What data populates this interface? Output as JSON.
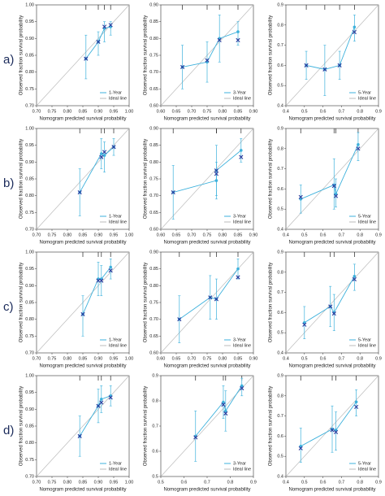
{
  "row_labels": [
    "a)",
    "b)",
    "c)",
    "d)"
  ],
  "chart_data": [
    {
      "type": "calibration",
      "xlabel": "Nomogram predicted survival probability",
      "ylabel": "Observed fraction survival probability",
      "series": [
        {
          "name": "1-Year",
          "color": "#3db1dc",
          "x": [
            0.86,
            0.9,
            0.92,
            0.94
          ],
          "values": [
            0.84,
            0.89,
            0.93,
            0.935
          ],
          "lower": [
            0.78,
            0.85,
            0.89,
            0.91
          ],
          "upper": [
            0.91,
            0.92,
            0.95,
            0.95
          ],
          "corrected": [
            0.84,
            0.89,
            0.935,
            0.94
          ],
          "corrected_color": "#2b3a9c"
        }
      ],
      "ideal": {
        "name": "Ideal line",
        "color": "#bbbbbb"
      },
      "xlim": [
        0.7,
        1.0
      ],
      "ylim": [
        0.7,
        1.0
      ],
      "xticks": [
        {
          "value": 0.7,
          "label": "0.70"
        },
        0.75,
        {
          "value": 0.8,
          "label": "0.80"
        },
        0.85,
        {
          "value": 0.9,
          "label": "0.90"
        },
        0.95,
        {
          "value": 1.0,
          "label": "1.00"
        }
      ],
      "yticks": [
        {
          "value": 0.7,
          "label": "0.70"
        },
        0.75,
        {
          "value": 0.8,
          "label": "0.80"
        },
        0.85,
        {
          "value": 0.9,
          "label": "0.90"
        },
        0.95,
        {
          "value": 1.0,
          "label": "1.00"
        }
      ]
    },
    {
      "type": "calibration",
      "xlabel": "Nomogram predicted survival probability",
      "ylabel": "Observed fraction survival probability",
      "series": [
        {
          "name": "3-Year",
          "color": "#3db1dc",
          "x": [
            0.67,
            0.75,
            0.79,
            0.85
          ],
          "values": [
            0.715,
            0.73,
            0.8,
            0.82
          ],
          "lower": [
            0.65,
            0.67,
            0.73,
            0.78
          ],
          "upper": [
            0.78,
            0.79,
            0.87,
            0.85
          ],
          "corrected": [
            0.715,
            0.735,
            0.795,
            0.795
          ],
          "corrected_color": "#2b3a9c"
        }
      ],
      "ideal": {
        "name": "Ideal line",
        "color": "#bbbbbb"
      },
      "xlim": [
        0.6,
        0.9
      ],
      "ylim": [
        0.6,
        0.9
      ],
      "xticks": [
        {
          "value": 0.6,
          "label": "0.60"
        },
        0.65,
        {
          "value": 0.7,
          "label": "0.70"
        },
        0.75,
        {
          "value": 0.8,
          "label": "0.80"
        },
        0.85,
        {
          "value": 0.9,
          "label": "0.90"
        }
      ],
      "yticks": [
        {
          "value": 0.6,
          "label": "0.60"
        },
        0.65,
        {
          "value": 0.7,
          "label": "0.70"
        },
        0.75,
        {
          "value": 0.8,
          "label": "0.80"
        },
        0.85,
        {
          "value": 0.9,
          "label": "0.90"
        }
      ]
    },
    {
      "type": "calibration",
      "xlabel": "Nomogram predicted survival probability",
      "ylabel": "Observed fraction survival probability",
      "series": [
        {
          "name": "5-Year",
          "color": "#3db1dc",
          "x": [
            0.51,
            0.61,
            0.69,
            0.77
          ],
          "values": [
            0.6,
            0.58,
            0.6,
            0.79
          ],
          "lower": [
            0.53,
            0.45,
            0.53,
            0.72
          ],
          "upper": [
            0.67,
            0.7,
            0.67,
            0.85
          ],
          "corrected": [
            0.6,
            0.58,
            0.6,
            0.765
          ],
          "corrected_color": "#2b3a9c"
        }
      ],
      "ideal": {
        "name": "Ideal line",
        "color": "#bbbbbb"
      },
      "xlim": [
        0.4,
        0.9
      ],
      "ylim": [
        0.4,
        0.9
      ],
      "xticks": [
        0.4,
        0.5,
        0.6,
        0.7,
        0.8,
        0.9
      ],
      "yticks": [
        0.4,
        0.5,
        0.6,
        0.7,
        0.8,
        0.9
      ]
    },
    {
      "type": "calibration",
      "xlabel": "Nomogram predicted survival probability",
      "ylabel": "Observed fraction survival probability",
      "series": [
        {
          "name": "1-Year",
          "color": "#3db1dc",
          "x": [
            0.84,
            0.91,
            0.92,
            0.95
          ],
          "values": [
            0.81,
            0.925,
            0.92,
            0.945
          ],
          "lower": [
            0.74,
            0.88,
            0.87,
            0.92
          ],
          "upper": [
            0.88,
            0.97,
            0.96,
            0.97
          ],
          "corrected": [
            0.81,
            0.915,
            0.93,
            0.945
          ],
          "corrected_color": "#2b3a9c"
        }
      ],
      "ideal": {
        "name": "Ideal line",
        "color": "#bbbbbb"
      },
      "xlim": [
        0.7,
        1.0
      ],
      "ylim": [
        0.7,
        1.0
      ],
      "xticks": [
        {
          "value": 0.7,
          "label": "0.70"
        },
        0.75,
        {
          "value": 0.8,
          "label": "0.80"
        },
        0.85,
        {
          "value": 0.9,
          "label": "0.90"
        },
        0.95,
        {
          "value": 1.0,
          "label": "1.00"
        }
      ],
      "yticks": [
        {
          "value": 0.7,
          "label": "0.70"
        },
        0.75,
        {
          "value": 0.8,
          "label": "0.80"
        },
        0.85,
        {
          "value": 0.9,
          "label": "0.90"
        },
        0.95,
        {
          "value": 1.0,
          "label": "1.00"
        }
      ]
    },
    {
      "type": "calibration",
      "xlabel": "Nomogram predicted survival probability",
      "ylabel": "Observed fraction survival probability",
      "series": [
        {
          "name": "3-Year",
          "color": "#3db1dc",
          "x": [
            0.64,
            0.78,
            0.78,
            0.86
          ],
          "values": [
            0.71,
            0.745,
            0.775,
            0.835
          ],
          "lower": [
            0.63,
            0.69,
            0.7,
            0.8
          ],
          "upper": [
            0.79,
            0.8,
            0.85,
            0.87
          ],
          "corrected": [
            0.71,
            0.765,
            0.775,
            0.815
          ],
          "corrected_color": "#2b3a9c"
        }
      ],
      "ideal": {
        "name": "Ideal line",
        "color": "#bbbbbb"
      },
      "xlim": [
        0.6,
        0.9
      ],
      "ylim": [
        0.6,
        0.9
      ],
      "xticks": [
        {
          "value": 0.6,
          "label": "0.60"
        },
        0.65,
        {
          "value": 0.7,
          "label": "0.70"
        },
        0.75,
        {
          "value": 0.8,
          "label": "0.80"
        },
        0.85,
        {
          "value": 0.9,
          "label": "0.90"
        }
      ],
      "yticks": [
        {
          "value": 0.6,
          "label": "0.60"
        },
        0.65,
        {
          "value": 0.7,
          "label": "0.70"
        },
        0.75,
        {
          "value": 0.8,
          "label": "0.80"
        },
        0.85,
        {
          "value": 0.9,
          "label": "0.90"
        }
      ]
    },
    {
      "type": "calibration",
      "xlabel": "Nomogram predicted survival probability",
      "ylabel": "Observed fraction survival probability",
      "series": [
        {
          "name": "5-Year",
          "color": "#3db1dc",
          "x": [
            0.48,
            0.66,
            0.67,
            0.79
          ],
          "values": [
            0.55,
            0.62,
            0.575,
            0.82
          ],
          "lower": [
            0.48,
            0.5,
            0.51,
            0.74
          ],
          "upper": [
            0.62,
            0.75,
            0.65,
            0.88
          ],
          "corrected": [
            0.56,
            0.615,
            0.565,
            0.8
          ],
          "corrected_color": "#2b3a9c"
        }
      ],
      "ideal": {
        "name": "Ideal line",
        "color": "#bbbbbb"
      },
      "xlim": [
        0.4,
        0.9
      ],
      "ylim": [
        0.4,
        0.9
      ],
      "xticks": [
        0.4,
        0.5,
        0.6,
        0.7,
        0.8,
        0.9
      ],
      "yticks": [
        0.4,
        0.5,
        0.6,
        0.7,
        0.8,
        0.9
      ]
    },
    {
      "type": "calibration",
      "xlabel": "Nomogram predicted survival probability",
      "ylabel": "Observed fraction survival probability",
      "series": [
        {
          "name": "1-Year",
          "color": "#3db1dc",
          "x": [
            0.85,
            0.9,
            0.91,
            0.94
          ],
          "values": [
            0.815,
            0.92,
            0.92,
            0.955
          ],
          "lower": [
            0.75,
            0.87,
            0.87,
            0.92
          ],
          "upper": [
            0.87,
            0.97,
            0.96,
            0.98
          ],
          "corrected": [
            0.815,
            0.915,
            0.915,
            0.945
          ],
          "corrected_color": "#2b3a9c"
        }
      ],
      "ideal": {
        "name": "Ideal line",
        "color": "#bbbbbb"
      },
      "xlim": [
        0.7,
        1.0
      ],
      "ylim": [
        0.7,
        1.0
      ],
      "xticks": [
        {
          "value": 0.7,
          "label": "0.70"
        },
        0.75,
        {
          "value": 0.8,
          "label": "0.80"
        },
        0.85,
        {
          "value": 0.9,
          "label": "0.90"
        },
        0.95,
        {
          "value": 1.0,
          "label": "1.00"
        }
      ],
      "yticks": [
        {
          "value": 0.7,
          "label": "0.70"
        },
        0.75,
        {
          "value": 0.8,
          "label": "0.80"
        },
        0.85,
        {
          "value": 0.9,
          "label": "0.90"
        },
        0.95,
        {
          "value": 1.0,
          "label": "1.00"
        }
      ]
    },
    {
      "type": "calibration",
      "xlabel": "Nomogram predicted survival probability",
      "ylabel": "Observed fraction survival probability",
      "series": [
        {
          "name": "3-Year",
          "color": "#3db1dc",
          "x": [
            0.66,
            0.76,
            0.78,
            0.85
          ],
          "values": [
            0.7,
            0.765,
            0.76,
            0.85
          ],
          "lower": [
            0.63,
            0.7,
            0.7,
            0.82
          ],
          "upper": [
            0.77,
            0.83,
            0.82,
            0.88
          ],
          "corrected": [
            0.7,
            0.765,
            0.76,
            0.825
          ],
          "corrected_color": "#2b3a9c"
        }
      ],
      "ideal": {
        "name": "Ideal line",
        "color": "#bbbbbb"
      },
      "xlim": [
        0.6,
        0.9
      ],
      "ylim": [
        0.6,
        0.9
      ],
      "xticks": [
        {
          "value": 0.6,
          "label": "0.60"
        },
        0.65,
        {
          "value": 0.7,
          "label": "0.70"
        },
        0.75,
        {
          "value": 0.8,
          "label": "0.80"
        },
        0.85,
        {
          "value": 0.9,
          "label": "0.90"
        }
      ],
      "yticks": [
        {
          "value": 0.6,
          "label": "0.60"
        },
        0.65,
        {
          "value": 0.7,
          "label": "0.70"
        },
        0.75,
        {
          "value": 0.8,
          "label": "0.80"
        },
        0.85,
        {
          "value": 0.9,
          "label": "0.90"
        }
      ]
    },
    {
      "type": "calibration",
      "xlabel": "Nomogram predicted survival probability",
      "ylabel": "Observed fraction survival probability",
      "series": [
        {
          "name": "5-Year",
          "color": "#3db1dc",
          "x": [
            0.5,
            0.64,
            0.66,
            0.77
          ],
          "values": [
            0.55,
            0.63,
            0.6,
            0.78
          ],
          "lower": [
            0.47,
            0.53,
            0.51,
            0.71
          ],
          "upper": [
            0.63,
            0.73,
            0.69,
            0.84
          ],
          "corrected": [
            0.54,
            0.63,
            0.595,
            0.765
          ],
          "corrected_color": "#2b3a9c"
        }
      ],
      "ideal": {
        "name": "Ideal line",
        "color": "#bbbbbb"
      },
      "xlim": [
        0.4,
        0.9
      ],
      "ylim": [
        0.4,
        0.9
      ],
      "xticks": [
        0.4,
        0.5,
        0.6,
        0.7,
        0.8,
        0.9
      ],
      "yticks": [
        0.4,
        0.5,
        0.6,
        0.7,
        0.8,
        0.9
      ]
    },
    {
      "type": "calibration",
      "xlabel": "Nomogram predicted survival probability",
      "ylabel": "Observed fraction survival probability",
      "series": [
        {
          "name": "1-Year",
          "color": "#3db1dc",
          "x": [
            0.84,
            0.9,
            0.91,
            0.94
          ],
          "values": [
            0.82,
            0.91,
            0.93,
            0.94
          ],
          "lower": [
            0.76,
            0.86,
            0.89,
            0.91
          ],
          "upper": [
            0.88,
            0.96,
            0.97,
            0.97
          ],
          "corrected": [
            0.82,
            0.91,
            0.92,
            0.935
          ],
          "corrected_color": "#2b3a9c"
        }
      ],
      "ideal": {
        "name": "Ideal line",
        "color": "#bbbbbb"
      },
      "xlim": [
        0.7,
        1.0
      ],
      "ylim": [
        0.7,
        1.0
      ],
      "xticks": [
        {
          "value": 0.7,
          "label": "0.70"
        },
        0.75,
        {
          "value": 0.8,
          "label": "0.80"
        },
        0.85,
        {
          "value": 0.9,
          "label": "0.90"
        },
        0.95,
        {
          "value": 1.0,
          "label": "1.00"
        }
      ],
      "yticks": [
        {
          "value": 0.7,
          "label": "0.70"
        },
        0.75,
        {
          "value": 0.8,
          "label": "0.80"
        },
        0.85,
        {
          "value": 0.9,
          "label": "0.90"
        },
        0.95,
        {
          "value": 1.0,
          "label": "1.00"
        }
      ]
    },
    {
      "type": "calibration",
      "xlabel": "Nomogram predicted survival probability",
      "ylabel": "Observed fraction survival probability",
      "series": [
        {
          "name": "3-Year",
          "color": "#3db1dc",
          "x": [
            0.65,
            0.77,
            0.78,
            0.85
          ],
          "values": [
            0.66,
            0.795,
            0.76,
            0.86
          ],
          "lower": [
            0.56,
            0.73,
            0.68,
            0.82
          ],
          "upper": [
            0.76,
            0.86,
            0.84,
            0.89
          ],
          "corrected": [
            0.655,
            0.785,
            0.75,
            0.85
          ],
          "corrected_color": "#2b3a9c"
        }
      ],
      "ideal": {
        "name": "Ideal line",
        "color": "#bbbbbb"
      },
      "xlim": [
        0.5,
        0.9
      ],
      "ylim": [
        0.5,
        0.9
      ],
      "xticks": [
        0.5,
        0.6,
        0.7,
        0.8,
        0.9
      ],
      "yticks": [
        0.5,
        0.6,
        0.7,
        0.8,
        0.9
      ]
    },
    {
      "type": "calibration",
      "xlabel": "Nomogram predicted survival probability",
      "ylabel": "Observed fraction survival probability",
      "series": [
        {
          "name": "5-Year",
          "color": "#3db1dc",
          "x": [
            0.48,
            0.65,
            0.67,
            0.78
          ],
          "values": [
            0.55,
            0.635,
            0.63,
            0.77
          ],
          "lower": [
            0.47,
            0.52,
            0.53,
            0.7
          ],
          "upper": [
            0.64,
            0.75,
            0.72,
            0.83
          ],
          "corrected": [
            0.54,
            0.63,
            0.62,
            0.745
          ],
          "corrected_color": "#2b3a9c"
        }
      ],
      "ideal": {
        "name": "Ideal line",
        "color": "#bbbbbb"
      },
      "xlim": [
        0.4,
        0.9
      ],
      "ylim": [
        0.4,
        0.9
      ],
      "xticks": [
        0.4,
        0.5,
        0.6,
        0.7,
        0.8,
        0.9
      ],
      "yticks": [
        0.4,
        0.5,
        0.6,
        0.7,
        0.8,
        0.9
      ]
    }
  ]
}
